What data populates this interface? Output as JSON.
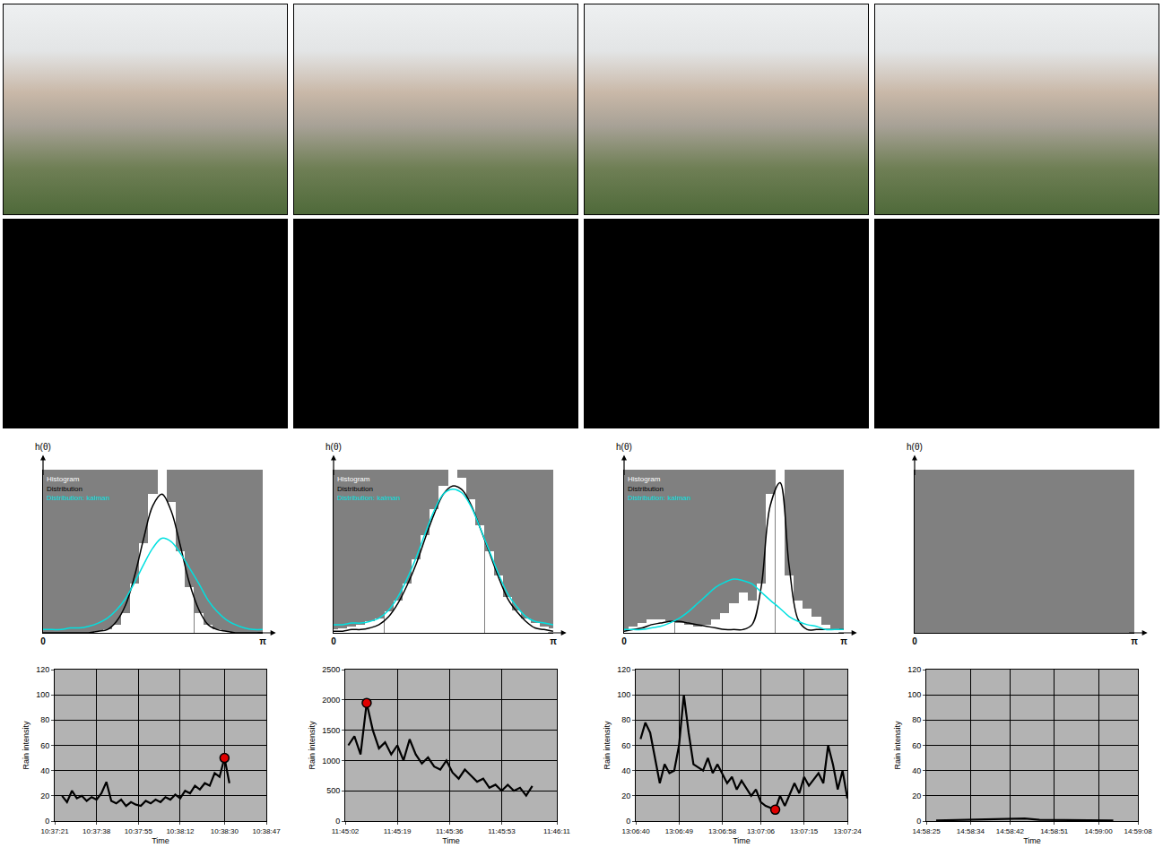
{
  "chart_data": [
    {
      "type": "line",
      "y_label": "h(θ)",
      "tick_labels": "x",
      "grid": false,
      "xlim": [
        0,
        3.1416
      ],
      "xticks": [
        0,
        {
          "value": 3.1416,
          "label": "π"
        }
      ],
      "ylim": [
        0,
        1
      ],
      "x": [
        0,
        0.13,
        0.26,
        0.39,
        0.52,
        0.65,
        0.79,
        0.92,
        1.05,
        1.18,
        1.31,
        1.44,
        1.57,
        1.7,
        1.83,
        1.96,
        2.09,
        2.23,
        2.36,
        2.49,
        2.62,
        2.75,
        2.88,
        3.01,
        3.14
      ],
      "series": [
        {
          "name": "Histogram",
          "type": "bar",
          "color": "#ffffff",
          "values": [
            0,
            0,
            0,
            0,
            0,
            0,
            0.01,
            0.02,
            0.05,
            0.12,
            0.3,
            0.55,
            0.85,
            1.0,
            0.8,
            0.5,
            0.28,
            0.12,
            0.05,
            0.02,
            0.01,
            0,
            0,
            0,
            0
          ]
        },
        {
          "name": "Distribution",
          "type": "line",
          "color": "#000000",
          "values": [
            0,
            0,
            0,
            0,
            0,
            0,
            0.01,
            0.02,
            0.07,
            0.17,
            0.35,
            0.58,
            0.78,
            0.85,
            0.75,
            0.54,
            0.31,
            0.14,
            0.05,
            0.02,
            0.01,
            0,
            0,
            0,
            0
          ]
        },
        {
          "name": "Distribution: kalman",
          "type": "line",
          "color": "#00e0e0",
          "values": [
            0.02,
            0.02,
            0.02,
            0.03,
            0.03,
            0.04,
            0.06,
            0.09,
            0.14,
            0.21,
            0.31,
            0.42,
            0.52,
            0.58,
            0.56,
            0.49,
            0.4,
            0.3,
            0.2,
            0.13,
            0.08,
            0.05,
            0.03,
            0.02,
            0.02
          ]
        }
      ]
    },
    {
      "type": "line",
      "y_label": "h(θ)",
      "tick_labels": "x",
      "grid": false,
      "xlim": [
        0,
        3.1416
      ],
      "xticks": [
        0,
        {
          "value": 3.1416,
          "label": "π"
        }
      ],
      "ylim": [
        0,
        1
      ],
      "x": [
        0,
        0.13,
        0.26,
        0.39,
        0.52,
        0.65,
        0.79,
        0.92,
        1.05,
        1.18,
        1.31,
        1.44,
        1.57,
        1.7,
        1.83,
        1.96,
        2.09,
        2.23,
        2.36,
        2.49,
        2.62,
        2.75,
        2.88,
        3.01,
        3.14
      ],
      "series": [
        {
          "name": "Histogram",
          "type": "bar",
          "color": "#ffffff",
          "values": [
            0.02,
            0.03,
            0.04,
            0.05,
            0.07,
            0.09,
            0.13,
            0.2,
            0.3,
            0.45,
            0.6,
            0.76,
            0.9,
            1.0,
            0.95,
            0.82,
            0.66,
            0.5,
            0.35,
            0.22,
            0.14,
            0.09,
            0.06,
            0.04,
            0.03
          ]
        },
        {
          "name": "Distribution",
          "type": "line",
          "color": "#000000",
          "values": [
            0.01,
            0.01,
            0.02,
            0.02,
            0.03,
            0.05,
            0.1,
            0.18,
            0.29,
            0.42,
            0.58,
            0.73,
            0.85,
            0.9,
            0.88,
            0.79,
            0.65,
            0.49,
            0.34,
            0.21,
            0.13,
            0.07,
            0.03,
            0.02,
            0.01
          ]
        },
        {
          "name": "Distribution: kalman",
          "type": "line",
          "color": "#00e0e0",
          "values": [
            0.05,
            0.05,
            0.06,
            0.06,
            0.07,
            0.09,
            0.14,
            0.22,
            0.33,
            0.46,
            0.61,
            0.75,
            0.85,
            0.88,
            0.86,
            0.78,
            0.65,
            0.5,
            0.36,
            0.24,
            0.16,
            0.1,
            0.07,
            0.06,
            0.05
          ]
        }
      ]
    },
    {
      "type": "line",
      "y_label": "h(θ)",
      "tick_labels": "x",
      "grid": false,
      "xlim": [
        0,
        3.1416
      ],
      "xticks": [
        0,
        {
          "value": 3.1416,
          "label": "π"
        }
      ],
      "ylim": [
        0,
        1
      ],
      "x": [
        0,
        0.13,
        0.26,
        0.39,
        0.52,
        0.65,
        0.79,
        0.92,
        1.05,
        1.18,
        1.31,
        1.44,
        1.57,
        1.7,
        1.83,
        1.96,
        2.09,
        2.23,
        2.36,
        2.49,
        2.62,
        2.75,
        2.88,
        3.01,
        3.14
      ],
      "series": [
        {
          "name": "Histogram",
          "type": "bar",
          "color": "#ffffff",
          "values": [
            0.02,
            0.04,
            0.06,
            0.08,
            0.08,
            0.07,
            0.06,
            0.05,
            0.04,
            0.05,
            0.08,
            0.12,
            0.18,
            0.25,
            0.2,
            0.3,
            0.85,
            1.0,
            0.35,
            0.2,
            0.15,
            0.1,
            0.05,
            0.03,
            0.02
          ]
        },
        {
          "name": "Distribution",
          "type": "line",
          "color": "#000000",
          "values": [
            0.01,
            0.02,
            0.03,
            0.05,
            0.06,
            0.07,
            0.07,
            0.06,
            0.05,
            0.04,
            0.03,
            0.02,
            0.02,
            0.02,
            0.05,
            0.28,
            0.78,
            0.92,
            0.41,
            0.08,
            0.02,
            0.02,
            0.02,
            0.02,
            0.02
          ]
        },
        {
          "name": "Distribution: kalman",
          "type": "line",
          "color": "#00e0e0",
          "values": [
            0.02,
            0.02,
            0.02,
            0.03,
            0.04,
            0.06,
            0.09,
            0.13,
            0.18,
            0.23,
            0.28,
            0.31,
            0.33,
            0.32,
            0.3,
            0.25,
            0.2,
            0.15,
            0.1,
            0.07,
            0.05,
            0.04,
            0.02,
            0.02,
            0.02
          ]
        }
      ]
    },
    {
      "type": "line",
      "y_label": "h(θ)",
      "tick_labels": "x",
      "grid": false,
      "xlim": [
        0,
        3.1416
      ],
      "xticks": [
        0,
        {
          "value": 3.1416,
          "label": "π"
        }
      ],
      "ylim": [
        0,
        1
      ],
      "series": []
    },
    {
      "type": "line",
      "x_label": "Time",
      "y_label": "Rain intensity",
      "grid": true,
      "xlim": [
        38241,
        38327
      ],
      "xticks": [
        {
          "value": 38241,
          "label": "10:37:21"
        },
        {
          "value": 38258,
          "label": "10:37:38"
        },
        {
          "value": 38275,
          "label": "10:37:55"
        },
        {
          "value": 38292,
          "label": "10:38:12"
        },
        {
          "value": 38310,
          "label": "10:38:30"
        },
        {
          "value": 38327,
          "label": "10:38:47"
        }
      ],
      "ylim": [
        0,
        120
      ],
      "yticks": [
        0,
        20,
        40,
        60,
        80,
        100,
        120
      ],
      "x": [
        38244,
        38246,
        38248,
        38250,
        38252,
        38254,
        38256,
        38258,
        38260,
        38262,
        38264,
        38266,
        38268,
        38270,
        38272,
        38274,
        38276,
        38278,
        38280,
        38282,
        38284,
        38286,
        38288,
        38290,
        38292,
        38294,
        38296,
        38298,
        38300,
        38302,
        38304,
        38306,
        38308,
        38310,
        38312
      ],
      "series": [
        {
          "color": "#000000",
          "values": [
            20,
            15,
            24,
            18,
            20,
            16,
            19,
            17,
            22,
            31,
            16,
            14,
            17,
            12,
            15,
            13,
            12,
            16,
            14,
            17,
            15,
            19,
            17,
            21,
            18,
            24,
            22,
            28,
            25,
            30,
            28,
            38,
            35,
            50,
            30
          ]
        }
      ],
      "highlight": {
        "x": 38310,
        "y": 50,
        "color": "#e00000"
      }
    },
    {
      "type": "line",
      "x_label": "Time",
      "y_label": "Rain intensity",
      "grid": true,
      "xlim": [
        42302,
        42371
      ],
      "xticks": [
        {
          "value": 42302,
          "label": "11:45:02"
        },
        {
          "value": 42319,
          "label": "11:45:19"
        },
        {
          "value": 42336,
          "label": "11:45:36"
        },
        {
          "value": 42353,
          "label": "11:45:53"
        },
        {
          "value": 42371,
          "label": "11:46:11"
        }
      ],
      "ylim": [
        0,
        2500
      ],
      "yticks": [
        0,
        500,
        1000,
        1500,
        2000,
        2500
      ],
      "x": [
        42303,
        42305,
        42307,
        42309,
        42311,
        42313,
        42315,
        42317,
        42319,
        42321,
        42323,
        42325,
        42327,
        42329,
        42331,
        42333,
        42335,
        42337,
        42339,
        42341,
        42343,
        42345,
        42347,
        42349,
        42351,
        42353,
        42355,
        42357,
        42359,
        42361,
        42363
      ],
      "series": [
        {
          "color": "#000000",
          "values": [
            1250,
            1400,
            1100,
            1950,
            1500,
            1200,
            1300,
            1100,
            1250,
            1000,
            1350,
            1100,
            950,
            1050,
            900,
            850,
            1000,
            800,
            700,
            850,
            750,
            650,
            700,
            550,
            600,
            500,
            600,
            500,
            550,
            420,
            580
          ]
        }
      ],
      "highlight": {
        "x": 42309,
        "y": 1950,
        "color": "#e00000"
      }
    },
    {
      "type": "line",
      "x_label": "Time",
      "y_label": "Rain intensity",
      "grid": true,
      "xlim": [
        47200,
        47244
      ],
      "xticks": [
        {
          "value": 47200,
          "label": "13:06:40"
        },
        {
          "value": 47209,
          "label": "13:06:49"
        },
        {
          "value": 47218,
          "label": "13:06:58"
        },
        {
          "value": 47226,
          "label": "13:07:06"
        },
        {
          "value": 47235,
          "label": "13:07:15"
        },
        {
          "value": 47244,
          "label": "13:07:24"
        }
      ],
      "ylim": [
        0,
        120
      ],
      "yticks": [
        0,
        20,
        40,
        60,
        80,
        100,
        120
      ],
      "x": [
        47201,
        47202,
        47203,
        47205,
        47206,
        47207,
        47208,
        47209,
        47210,
        47211,
        47212,
        47214,
        47215,
        47216,
        47217,
        47219,
        47220,
        47221,
        47222,
        47224,
        47225,
        47226,
        47227,
        47229,
        47230,
        47231,
        47233,
        47234,
        47235,
        47236,
        47238,
        47239,
        47240,
        47241,
        47242,
        47243,
        47244
      ],
      "series": [
        {
          "color": "#000000",
          "values": [
            65,
            78,
            70,
            30,
            45,
            38,
            40,
            60,
            100,
            70,
            45,
            40,
            50,
            38,
            45,
            30,
            35,
            25,
            32,
            20,
            25,
            15,
            12,
            9,
            20,
            12,
            30,
            22,
            35,
            28,
            38,
            30,
            60,
            45,
            25,
            40,
            18
          ]
        }
      ],
      "highlight": {
        "x": 47229,
        "y": 9,
        "color": "#e00000"
      }
    },
    {
      "type": "line",
      "x_label": "Time",
      "y_label": "Rain intensity",
      "grid": true,
      "xlim": [
        53905,
        53948
      ],
      "xticks": [
        {
          "value": 53905,
          "label": "14:58:25"
        },
        {
          "value": 53914,
          "label": "14:58:34"
        },
        {
          "value": 53922,
          "label": "14:58:42"
        },
        {
          "value": 53931,
          "label": "14:58:51"
        },
        {
          "value": 53940,
          "label": "14:59:00"
        },
        {
          "value": 53948,
          "label": "14:59:08"
        }
      ],
      "ylim": [
        0,
        120
      ],
      "yticks": [
        0,
        20,
        40,
        60,
        80,
        100,
        120
      ],
      "x": [
        53907,
        53912,
        53917,
        53922,
        53925,
        53928,
        53933,
        53938,
        53943
      ],
      "series": [
        {
          "color": "#000000",
          "values": [
            0.5,
            1,
            1,
            1.5,
            2,
            1,
            1,
            0.5,
            0.5
          ]
        }
      ]
    }
  ]
}
